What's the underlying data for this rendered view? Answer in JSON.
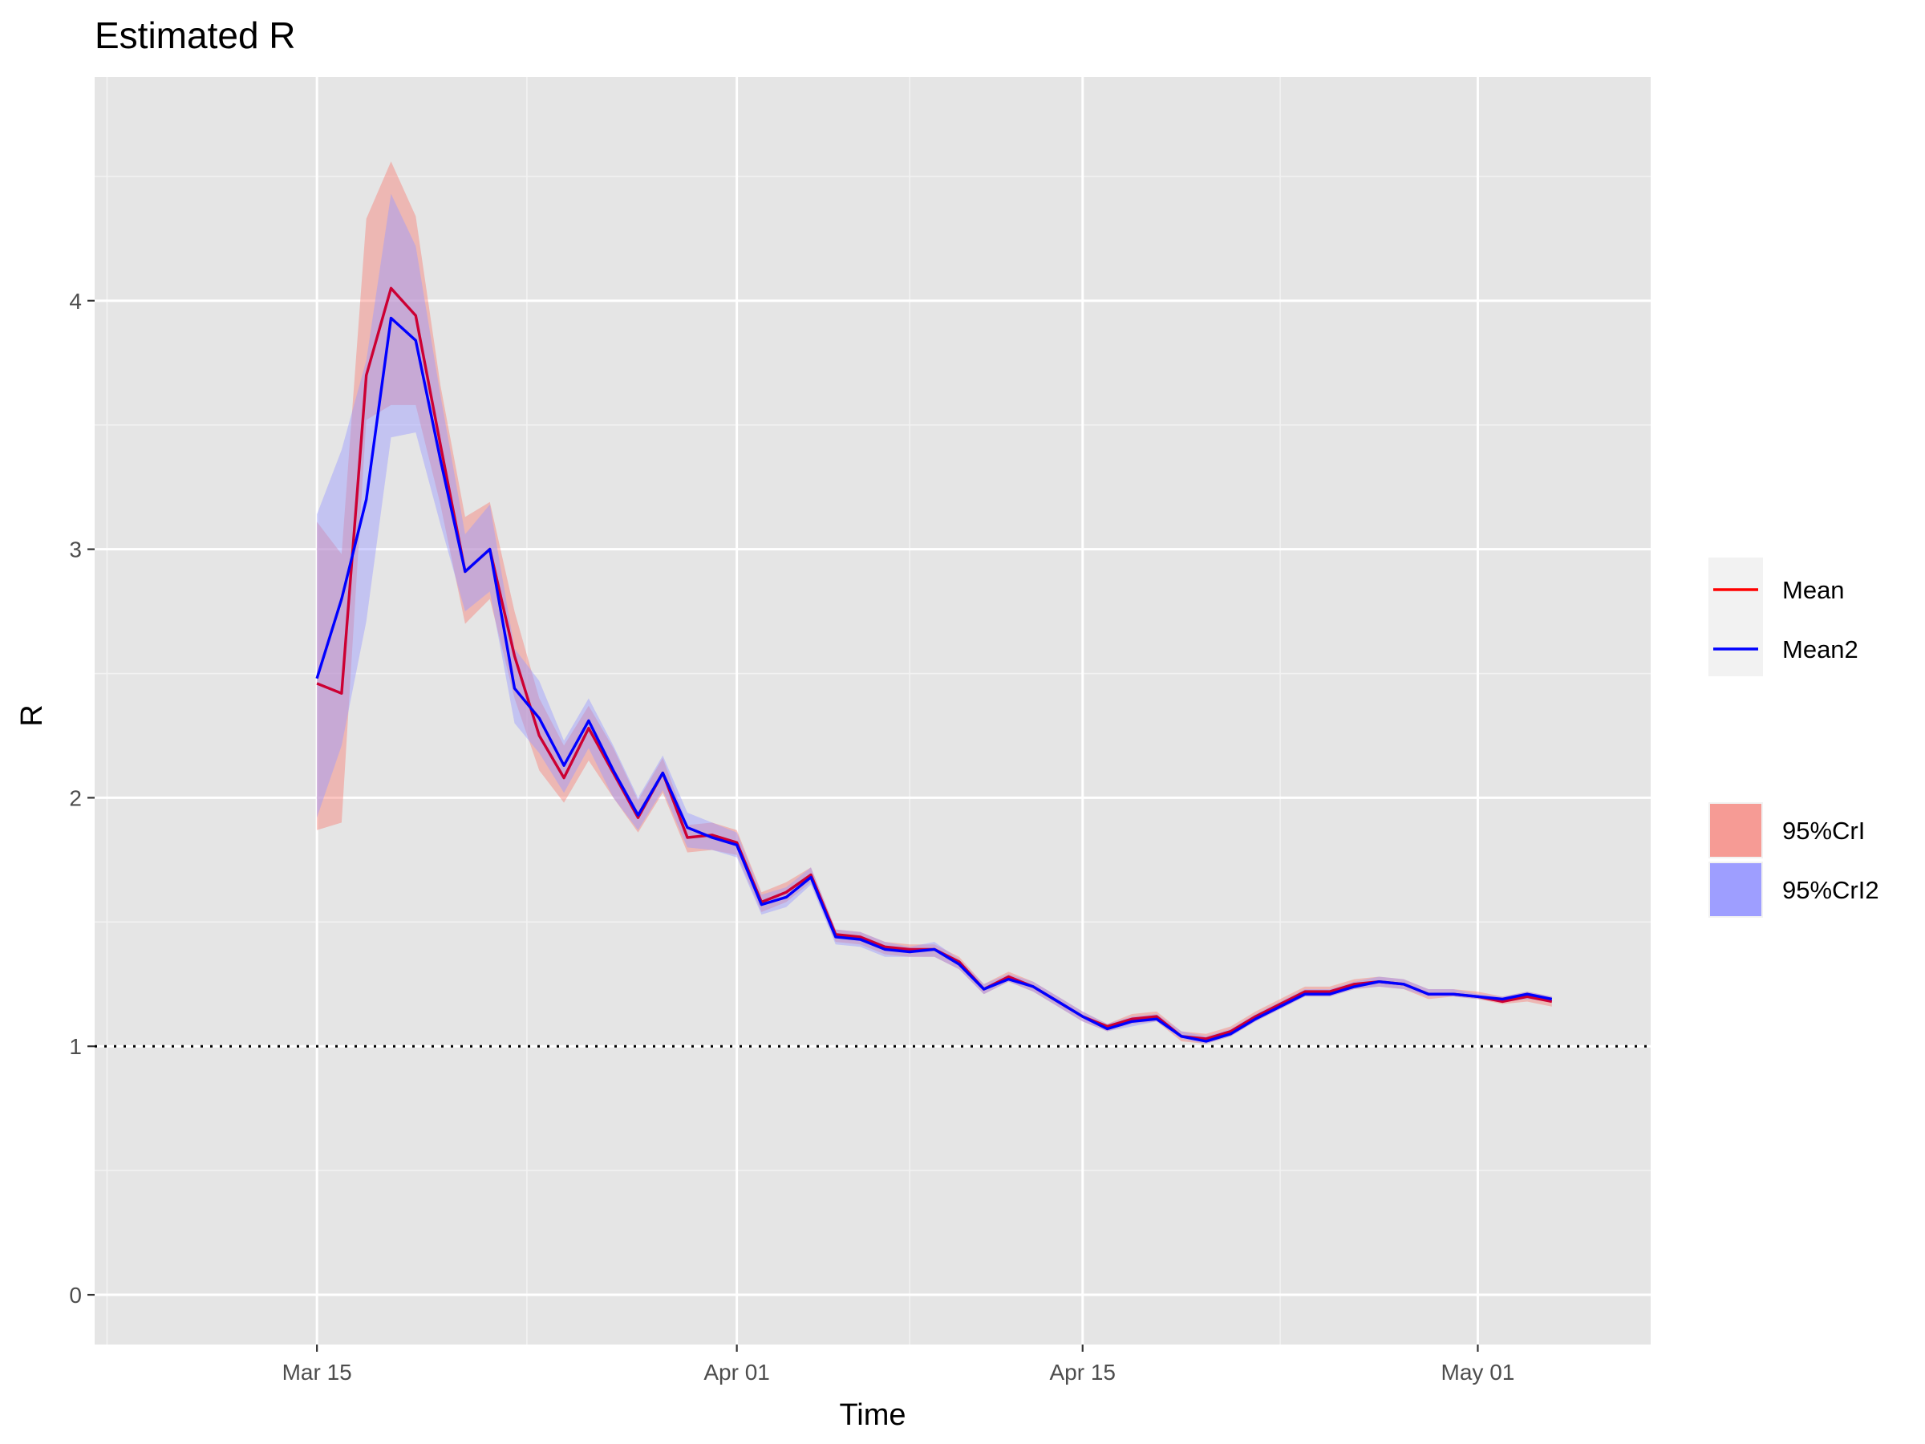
{
  "chart_data": {
    "type": "line",
    "title": "Estimated R",
    "xlabel": "Time",
    "ylabel": "R",
    "x_ticks": [
      {
        "date": "2020-03-15",
        "label": "Mar 15"
      },
      {
        "date": "2020-04-01",
        "label": "Apr 01"
      },
      {
        "date": "2020-04-15",
        "label": "Apr 15"
      },
      {
        "date": "2020-05-01",
        "label": "May 01"
      }
    ],
    "xlim": [
      "2020-03-06",
      "2020-05-08"
    ],
    "ylim": [
      -0.2,
      4.9
    ],
    "y_ticks": [
      0,
      1,
      2,
      3,
      4
    ],
    "reference_line": {
      "y": 1,
      "style": "dotted"
    },
    "grid": true,
    "legend_position": "right",
    "x": [
      "2020-03-15",
      "2020-03-16",
      "2020-03-17",
      "2020-03-18",
      "2020-03-19",
      "2020-03-20",
      "2020-03-21",
      "2020-03-22",
      "2020-03-23",
      "2020-03-24",
      "2020-03-25",
      "2020-03-26",
      "2020-03-27",
      "2020-03-28",
      "2020-03-29",
      "2020-03-30",
      "2020-03-31",
      "2020-04-01",
      "2020-04-02",
      "2020-04-03",
      "2020-04-04",
      "2020-04-05",
      "2020-04-06",
      "2020-04-07",
      "2020-04-08",
      "2020-04-09",
      "2020-04-10",
      "2020-04-11",
      "2020-04-12",
      "2020-04-13",
      "2020-04-14",
      "2020-04-15",
      "2020-04-16",
      "2020-04-17",
      "2020-04-18",
      "2020-04-19",
      "2020-04-20",
      "2020-04-21",
      "2020-04-22",
      "2020-04-23",
      "2020-04-24",
      "2020-04-25",
      "2020-04-26",
      "2020-04-27",
      "2020-04-28",
      "2020-04-29",
      "2020-04-30",
      "2020-05-01",
      "2020-05-02",
      "2020-05-03",
      "2020-05-04"
    ],
    "series": [
      {
        "name": "Mean",
        "color": "#ff0000",
        "values": [
          2.46,
          2.42,
          3.7,
          4.05,
          3.94,
          3.42,
          2.91,
          3.0,
          2.57,
          2.25,
          2.08,
          2.28,
          2.1,
          1.92,
          2.1,
          1.84,
          1.85,
          1.82,
          1.58,
          1.62,
          1.69,
          1.45,
          1.44,
          1.4,
          1.39,
          1.39,
          1.34,
          1.23,
          1.28,
          1.24,
          1.18,
          1.12,
          1.08,
          1.11,
          1.12,
          1.04,
          1.03,
          1.06,
          1.12,
          1.17,
          1.22,
          1.22,
          1.25,
          1.26,
          1.25,
          1.21,
          1.21,
          1.2,
          1.18,
          1.2,
          1.18
        ]
      },
      {
        "name": "Mean2",
        "color": "#0000ff",
        "values": [
          2.48,
          2.8,
          3.2,
          3.93,
          3.84,
          3.36,
          2.91,
          3.0,
          2.44,
          2.32,
          2.13,
          2.31,
          2.11,
          1.93,
          2.1,
          1.88,
          1.84,
          1.81,
          1.57,
          1.6,
          1.68,
          1.44,
          1.43,
          1.39,
          1.38,
          1.39,
          1.33,
          1.23,
          1.27,
          1.24,
          1.18,
          1.12,
          1.07,
          1.1,
          1.11,
          1.04,
          1.02,
          1.05,
          1.11,
          1.16,
          1.21,
          1.21,
          1.24,
          1.26,
          1.25,
          1.21,
          1.21,
          1.2,
          1.19,
          1.21,
          1.19
        ]
      }
    ],
    "ribbons": [
      {
        "name": "95%CrI",
        "color": "#f8766d",
        "lower": [
          1.87,
          1.9,
          3.52,
          3.58,
          3.58,
          3.18,
          2.7,
          2.8,
          2.4,
          2.11,
          1.98,
          2.15,
          2.0,
          1.86,
          2.02,
          1.78,
          1.79,
          1.77,
          1.54,
          1.58,
          1.66,
          1.42,
          1.41,
          1.37,
          1.36,
          1.36,
          1.31,
          1.21,
          1.26,
          1.22,
          1.16,
          1.1,
          1.06,
          1.09,
          1.1,
          1.02,
          1.01,
          1.04,
          1.1,
          1.15,
          1.2,
          1.2,
          1.23,
          1.24,
          1.23,
          1.19,
          1.2,
          1.19,
          1.17,
          1.18,
          1.16
        ],
        "upper": [
          3.11,
          2.98,
          4.33,
          4.56,
          4.34,
          3.66,
          3.13,
          3.19,
          2.75,
          2.4,
          2.21,
          2.37,
          2.2,
          1.99,
          2.16,
          1.89,
          1.9,
          1.87,
          1.62,
          1.66,
          1.72,
          1.47,
          1.46,
          1.42,
          1.41,
          1.41,
          1.36,
          1.25,
          1.3,
          1.26,
          1.2,
          1.14,
          1.09,
          1.13,
          1.14,
          1.06,
          1.05,
          1.08,
          1.14,
          1.19,
          1.24,
          1.24,
          1.27,
          1.28,
          1.27,
          1.23,
          1.23,
          1.22,
          1.2,
          1.22,
          1.2
        ]
      },
      {
        "name": "95%CrI2",
        "color": "#9999ff",
        "lower": [
          1.92,
          2.21,
          2.71,
          3.45,
          3.47,
          3.1,
          2.75,
          2.83,
          2.3,
          2.18,
          2.02,
          2.2,
          2.0,
          1.87,
          2.03,
          1.8,
          1.79,
          1.76,
          1.53,
          1.56,
          1.65,
          1.41,
          1.4,
          1.36,
          1.36,
          1.36,
          1.31,
          1.21,
          1.26,
          1.22,
          1.16,
          1.1,
          1.06,
          1.08,
          1.1,
          1.03,
          1.01,
          1.04,
          1.1,
          1.15,
          1.2,
          1.2,
          1.23,
          1.24,
          1.23,
          1.2,
          1.2,
          1.19,
          1.18,
          1.19,
          1.18
        ],
        "upper": [
          3.14,
          3.4,
          3.76,
          4.43,
          4.22,
          3.62,
          3.06,
          3.18,
          2.6,
          2.47,
          2.23,
          2.4,
          2.21,
          2.0,
          2.17,
          1.94,
          1.9,
          1.86,
          1.61,
          1.64,
          1.72,
          1.47,
          1.46,
          1.42,
          1.4,
          1.42,
          1.35,
          1.25,
          1.29,
          1.26,
          1.2,
          1.14,
          1.09,
          1.12,
          1.13,
          1.06,
          1.04,
          1.07,
          1.13,
          1.18,
          1.23,
          1.23,
          1.26,
          1.28,
          1.27,
          1.23,
          1.23,
          1.21,
          1.2,
          1.22,
          1.2
        ]
      }
    ]
  }
}
